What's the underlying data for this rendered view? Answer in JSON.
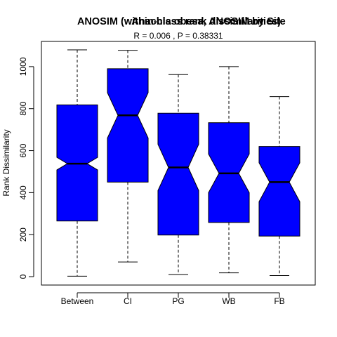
{
  "chart_data": {
    "type": "boxplot",
    "title_layers": [
      "ANOSIM (within-class rank dissimilarities)",
      "Anachis obesa, ANOSIM by Site"
    ],
    "subtitle": "R =  0.006 ,  P =  0.38331",
    "ylabel": "Rank Dissimilarity",
    "xlabel": "",
    "ylim": [
      -40,
      1120
    ],
    "yticks": [
      0,
      200,
      400,
      600,
      800,
      1000
    ],
    "categories": [
      "Between",
      "CI",
      "PG",
      "WB",
      "FB"
    ],
    "boxes": [
      {
        "name": "Between",
        "min": 2,
        "q1": 265,
        "median": 538,
        "q3": 818,
        "max": 1080,
        "notch_low": 508,
        "notch_high": 568
      },
      {
        "name": "CI",
        "min": 70,
        "q1": 450,
        "median": 768,
        "q3": 990,
        "max": 1078,
        "notch_low": 660,
        "notch_high": 876
      },
      {
        "name": "PG",
        "min": 10,
        "q1": 198,
        "median": 520,
        "q3": 778,
        "max": 962,
        "notch_low": 410,
        "notch_high": 630
      },
      {
        "name": "WB",
        "min": 18,
        "q1": 258,
        "median": 492,
        "q3": 733,
        "max": 1000,
        "notch_low": 400,
        "notch_high": 584
      },
      {
        "name": "FB",
        "min": 5,
        "q1": 193,
        "median": 450,
        "q3": 620,
        "max": 857,
        "notch_low": 357,
        "notch_high": 542
      }
    ],
    "box_color": "#0000ff",
    "grid": false,
    "legend": "none"
  }
}
